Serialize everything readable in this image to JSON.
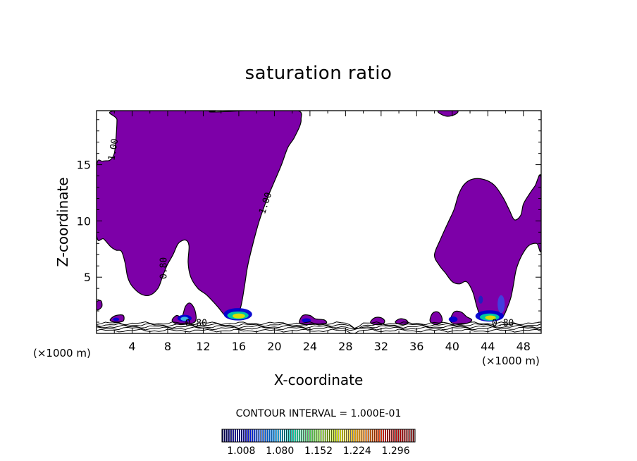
{
  "chart_data": {
    "type": "heatmap",
    "title": "saturation ratio",
    "xlabel": "X-coordinate",
    "ylabel": "Z-coordinate",
    "x_unit_left": "(×1000 m)",
    "x_unit_right": "(×1000 m)",
    "xlim": [
      0,
      50
    ],
    "ylim": [
      0,
      19.8
    ],
    "x_ticks": [
      4,
      8,
      12,
      16,
      20,
      24,
      28,
      32,
      36,
      40,
      44,
      48
    ],
    "y_ticks": [
      5,
      10,
      15
    ],
    "contour_interval_text": "CONTOUR INTERVAL = 1.000E-01",
    "contour_labels": [
      {
        "text": "1.00",
        "x": 2.2,
        "y": 16.3,
        "rotation": -80
      },
      {
        "text": "1.00",
        "x": 19.3,
        "y": 11.5,
        "rotation": -72
      },
      {
        "text": "0.80",
        "x": 7.9,
        "y": 5.8,
        "rotation": -90
      },
      {
        "text": "0.80",
        "x": 11.2,
        "y": 0.65,
        "rotation": 0
      },
      {
        "text": "0.80",
        "x": 45.7,
        "y": 0.65,
        "rotation": 0
      }
    ],
    "colorbar": {
      "ticks": [
        "1.008",
        "1.080",
        "1.152",
        "1.224",
        "1.296"
      ],
      "range": [
        0.972,
        1.332
      ],
      "colors": [
        "#000060",
        "#0000d0",
        "#0080ff",
        "#00d0a0",
        "#80e040",
        "#e0e000",
        "#ff8000",
        "#d00000",
        "#800000"
      ]
    },
    "fill_color": "#7d00a8",
    "regions": [
      {
        "name": "left-saturated-region",
        "points": [
          [
            0,
            14.8
          ],
          [
            0.7,
            15.3
          ],
          [
            1.5,
            15.4
          ],
          [
            2.0,
            16.0
          ],
          [
            2.2,
            17.5
          ],
          [
            2.3,
            19.0
          ],
          [
            2.2,
            19.8
          ],
          [
            12.6,
            19.8
          ],
          [
            12.7,
            19.7
          ],
          [
            14.0,
            19.7
          ],
          [
            22.0,
            19.9
          ],
          [
            23.0,
            19.0
          ],
          [
            22.3,
            17.5
          ],
          [
            21.5,
            16.5
          ],
          [
            20.8,
            15.0
          ],
          [
            20.0,
            13.5
          ],
          [
            19.2,
            12.0
          ],
          [
            18.3,
            10.0
          ],
          [
            17.6,
            8.0
          ],
          [
            17.0,
            6.0
          ],
          [
            16.6,
            4.0
          ],
          [
            16.2,
            2.3
          ],
          [
            15.6,
            1.6
          ],
          [
            14.6,
            1.5
          ],
          [
            13.6,
            2.4
          ],
          [
            12.4,
            3.4
          ],
          [
            11.4,
            4.0
          ],
          [
            10.6,
            5.0
          ],
          [
            10.3,
            6.3
          ],
          [
            10.4,
            7.8
          ],
          [
            10.0,
            8.3
          ],
          [
            9.2,
            8.0
          ],
          [
            8.6,
            7.0
          ],
          [
            7.9,
            6.0
          ],
          [
            7.4,
            5.0
          ],
          [
            6.9,
            4.0
          ],
          [
            6.0,
            3.4
          ],
          [
            5.0,
            3.5
          ],
          [
            4.0,
            4.2
          ],
          [
            3.5,
            5.0
          ],
          [
            3.2,
            6.3
          ],
          [
            2.8,
            7.3
          ],
          [
            2.2,
            7.4
          ],
          [
            1.6,
            7.7
          ],
          [
            0.8,
            8.4
          ],
          [
            0,
            8.8
          ]
        ]
      },
      {
        "name": "right-saturated-region",
        "points": [
          [
            38.0,
            7.0
          ],
          [
            38.7,
            8.4
          ],
          [
            39.5,
            9.8
          ],
          [
            40.2,
            11.0
          ],
          [
            40.7,
            12.3
          ],
          [
            41.3,
            13.2
          ],
          [
            42.2,
            13.7
          ],
          [
            43.5,
            13.7
          ],
          [
            44.7,
            13.2
          ],
          [
            45.7,
            12.1
          ],
          [
            46.4,
            11.0
          ],
          [
            47.0,
            10.1
          ],
          [
            47.7,
            10.5
          ],
          [
            48.0,
            11.5
          ],
          [
            48.6,
            12.3
          ],
          [
            49.3,
            13.1
          ],
          [
            50,
            13.8
          ],
          [
            50,
            7.6
          ],
          [
            49.5,
            8.0
          ],
          [
            48.6,
            7.8
          ],
          [
            47.8,
            6.9
          ],
          [
            47.2,
            5.7
          ],
          [
            46.9,
            4.4
          ],
          [
            46.6,
            3.2
          ],
          [
            46.2,
            2.3
          ],
          [
            45.6,
            1.4
          ],
          [
            44.5,
            1.2
          ],
          [
            43.3,
            1.4
          ],
          [
            42.8,
            2.3
          ],
          [
            42.3,
            3.7
          ],
          [
            41.6,
            4.6
          ],
          [
            40.8,
            4.4
          ],
          [
            40.0,
            4.6
          ],
          [
            39.2,
            5.4
          ],
          [
            38.5,
            6.1
          ]
        ]
      },
      {
        "name": "top-right-blob",
        "points": [
          [
            38.5,
            19.8
          ],
          [
            40.5,
            19.8
          ],
          [
            40.4,
            19.5
          ],
          [
            39.5,
            19.3
          ],
          [
            38.7,
            19.5
          ]
        ]
      },
      {
        "name": "blob-left-edge",
        "points": [
          [
            0,
            2.8
          ],
          [
            0.5,
            2.9
          ],
          [
            0.6,
            2.4
          ],
          [
            0.2,
            2.1
          ],
          [
            0,
            2.2
          ]
        ]
      },
      {
        "name": "blob-x2",
        "points": [
          [
            1.6,
            1.3
          ],
          [
            2.2,
            1.6
          ],
          [
            3.0,
            1.6
          ],
          [
            3.0,
            1.1
          ],
          [
            2.2,
            1.0
          ],
          [
            1.6,
            1.1
          ]
        ]
      },
      {
        "name": "blob-x10",
        "points": [
          [
            8.5,
            1.2
          ],
          [
            9.0,
            1.6
          ],
          [
            9.6,
            1.5
          ],
          [
            10.0,
            2.4
          ],
          [
            10.5,
            2.7
          ],
          [
            11.0,
            2.2
          ],
          [
            11.2,
            1.3
          ],
          [
            10.8,
            0.9
          ],
          [
            9.5,
            0.8
          ],
          [
            8.8,
            0.9
          ]
        ]
      },
      {
        "name": "blob-x23",
        "points": [
          [
            22.8,
            1.0
          ],
          [
            23.2,
            1.6
          ],
          [
            24.0,
            1.6
          ],
          [
            24.6,
            1.3
          ],
          [
            25.6,
            1.2
          ],
          [
            25.8,
            0.9
          ],
          [
            24.4,
            0.8
          ],
          [
            23.2,
            0.8
          ]
        ]
      },
      {
        "name": "blob-x32",
        "points": [
          [
            30.8,
            1.0
          ],
          [
            31.3,
            1.4
          ],
          [
            32.0,
            1.4
          ],
          [
            32.4,
            1.1
          ],
          [
            32.1,
            0.8
          ],
          [
            31.2,
            0.8
          ]
        ]
      },
      {
        "name": "blob-x34",
        "points": [
          [
            33.6,
            1.0
          ],
          [
            34.1,
            1.3
          ],
          [
            34.8,
            1.2
          ],
          [
            35.0,
            0.9
          ],
          [
            34.2,
            0.8
          ]
        ]
      },
      {
        "name": "blob-x38",
        "points": [
          [
            37.5,
            1.1
          ],
          [
            37.8,
            1.8
          ],
          [
            38.4,
            1.9
          ],
          [
            38.8,
            1.5
          ],
          [
            38.8,
            1.0
          ],
          [
            38.1,
            0.8
          ]
        ]
      },
      {
        "name": "blob-x41",
        "points": [
          [
            39.8,
            1.1
          ],
          [
            40.2,
            1.9
          ],
          [
            41.0,
            1.9
          ],
          [
            41.6,
            1.5
          ],
          [
            42.2,
            1.2
          ],
          [
            41.7,
            0.9
          ],
          [
            40.5,
            0.8
          ]
        ]
      }
    ],
    "hot_spots": [
      {
        "x": 15.9,
        "y": 1.7,
        "rx": 1.6,
        "ry": 0.55,
        "color": "#0000d0"
      },
      {
        "x": 15.9,
        "y": 1.6,
        "rx": 1.2,
        "ry": 0.35,
        "color": "#00d0a0"
      },
      {
        "x": 16.0,
        "y": 1.55,
        "rx": 0.7,
        "ry": 0.22,
        "color": "#e0e000"
      },
      {
        "x": 9.9,
        "y": 1.35,
        "rx": 0.8,
        "ry": 0.3,
        "color": "#0000d0"
      },
      {
        "x": 9.9,
        "y": 1.3,
        "rx": 0.45,
        "ry": 0.18,
        "color": "#40c0e0"
      },
      {
        "x": 44.2,
        "y": 1.55,
        "rx": 1.6,
        "ry": 0.5,
        "color": "#0000d0"
      },
      {
        "x": 44.2,
        "y": 1.45,
        "rx": 1.1,
        "ry": 0.32,
        "color": "#00d0a0"
      },
      {
        "x": 44.3,
        "y": 1.4,
        "rx": 0.6,
        "ry": 0.2,
        "color": "#e0e000"
      },
      {
        "x": 45.5,
        "y": 2.6,
        "rx": 0.4,
        "ry": 0.8,
        "color": "#4040e0"
      },
      {
        "x": 43.2,
        "y": 3.0,
        "rx": 0.25,
        "ry": 0.35,
        "color": "#2020c0"
      },
      {
        "x": 40.1,
        "y": 1.25,
        "rx": 0.5,
        "ry": 0.25,
        "color": "#0000d0"
      },
      {
        "x": 23.6,
        "y": 1.15,
        "rx": 0.5,
        "ry": 0.2,
        "color": "#0000d0"
      },
      {
        "x": 2.2,
        "y": 1.25,
        "rx": 0.35,
        "ry": 0.15,
        "color": "#0000d0"
      }
    ],
    "near_surface_lines": [
      0.25,
      0.45,
      0.6,
      0.75,
      0.9
    ]
  }
}
